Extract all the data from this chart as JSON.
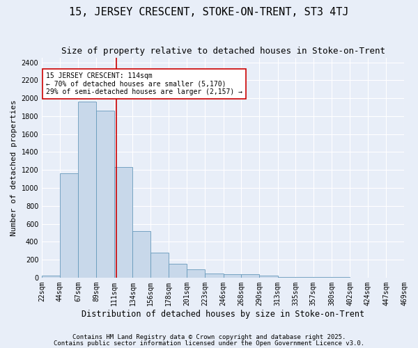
{
  "title1": "15, JERSEY CRESCENT, STOKE-ON-TRENT, ST3 4TJ",
  "title2": "Size of property relative to detached houses in Stoke-on-Trent",
  "xlabel": "Distribution of detached houses by size in Stoke-on-Trent",
  "ylabel": "Number of detached properties",
  "bin_edges": [
    22,
    44,
    67,
    89,
    111,
    134,
    156,
    178,
    201,
    223,
    246,
    268,
    290,
    313,
    335,
    357,
    380,
    402,
    424,
    447,
    469
  ],
  "counts": [
    25,
    1160,
    1960,
    1860,
    1230,
    520,
    275,
    155,
    95,
    45,
    40,
    40,
    20,
    10,
    8,
    5,
    3,
    2,
    2,
    2
  ],
  "bar_color": "#c8d8ea",
  "bar_edge_color": "#6699bb",
  "property_size": 114,
  "red_line_color": "#cc0000",
  "annotation_text": "15 JERSEY CRESCENT: 114sqm\n← 70% of detached houses are smaller (5,170)\n29% of semi-detached houses are larger (2,157) →",
  "annotation_box_color": "#ffffff",
  "annotation_box_edge_color": "#cc0000",
  "ylim": [
    0,
    2450
  ],
  "yticks": [
    0,
    200,
    400,
    600,
    800,
    1000,
    1200,
    1400,
    1600,
    1800,
    2000,
    2200,
    2400
  ],
  "bg_color": "#e8eef8",
  "footer1": "Contains HM Land Registry data © Crown copyright and database right 2025.",
  "footer2": "Contains public sector information licensed under the Open Government Licence v3.0.",
  "title1_fontsize": 11,
  "title2_fontsize": 9,
  "tick_fontsize": 7,
  "xlabel_fontsize": 8.5,
  "ylabel_fontsize": 8,
  "footer_fontsize": 6.5,
  "annotation_fontsize": 7
}
